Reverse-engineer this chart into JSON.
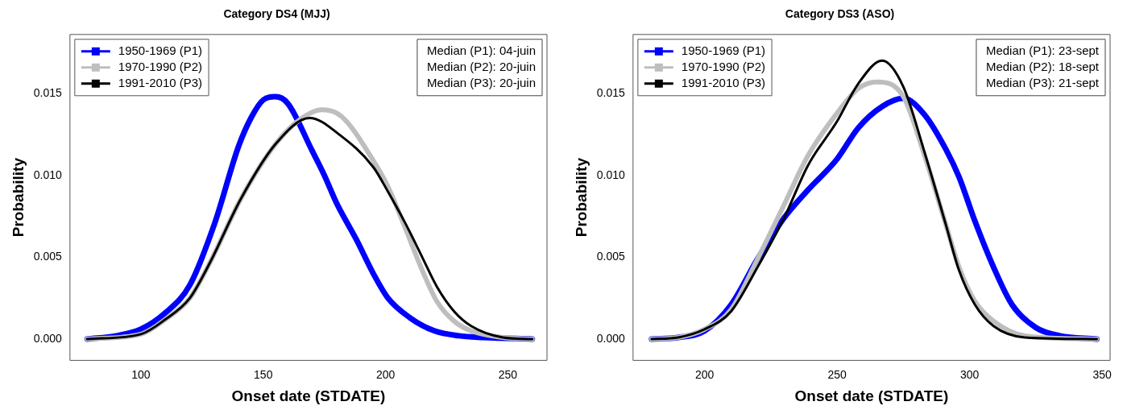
{
  "chart_data": [
    {
      "type": "line",
      "title": "Category DS4 (MJJ)",
      "xlabel": "Onset date (STDATE)",
      "ylabel": "Probability",
      "xlim": [
        71,
        266
      ],
      "ylim": [
        -0.0013,
        0.0186
      ],
      "xticks": [
        100,
        150,
        200,
        250
      ],
      "yticks": [
        {
          "value": 0,
          "label": "0.000"
        },
        {
          "value": 0.005,
          "label": "0.005"
        },
        {
          "value": 0.01,
          "label": "0.010"
        },
        {
          "value": 0.015,
          "label": "0.015"
        }
      ],
      "grid": false,
      "legend": "top left",
      "line_style": "solid",
      "annotations": [
        "Median (P1): 04-juin",
        "Median (P2): 20-juin",
        "Median (P3): 20-juin"
      ],
      "series": [
        {
          "name": "1950-1969 (P1)",
          "color": "#0000ff",
          "x": [
            78,
            90,
            100,
            110,
            120,
            130,
            140,
            145,
            150,
            155,
            160,
            170,
            175,
            180,
            188,
            195,
            201,
            210,
            220,
            230,
            240,
            260
          ],
          "values": [
            0,
            0.0002,
            0.0006,
            0.0016,
            0.0033,
            0.007,
            0.0118,
            0.0135,
            0.0146,
            0.0148,
            0.0144,
            0.0115,
            0.01,
            0.0083,
            0.0061,
            0.004,
            0.0025,
            0.0013,
            0.0005,
            0.0002,
            0.0001,
            0
          ]
        },
        {
          "name": "1970-1990 (P2)",
          "color": "#bebebe",
          "x": [
            78,
            100,
            110,
            120,
            128,
            141,
            155,
            165,
            174,
            182,
            195,
            201,
            208,
            215,
            221,
            228,
            235,
            248,
            260
          ],
          "values": [
            0,
            0.0003,
            0.0012,
            0.0025,
            0.0046,
            0.0086,
            0.0119,
            0.0134,
            0.014,
            0.0136,
            0.0109,
            0.0093,
            0.0068,
            0.0042,
            0.0023,
            0.0011,
            0.0005,
            0.0001,
            0
          ]
        },
        {
          "name": "1991-2010 (P3)",
          "color": "#000000",
          "x": [
            78,
            100,
            110,
            120,
            128,
            141,
            155,
            169,
            181,
            195,
            201,
            208,
            215,
            221,
            228,
            235,
            248,
            260
          ],
          "values": [
            0,
            0.0003,
            0.0012,
            0.0025,
            0.0046,
            0.0086,
            0.0119,
            0.0135,
            0.0125,
            0.0105,
            0.009,
            0.0071,
            0.005,
            0.0032,
            0.0017,
            0.0008,
            0.0001,
            0
          ]
        }
      ]
    },
    {
      "type": "line",
      "title": "Category DS3 (ASO)",
      "xlabel": "Onset date (STDATE)",
      "ylabel": "Probability",
      "xlim": [
        173,
        353
      ],
      "ylim": [
        -0.0013,
        0.0186
      ],
      "xticks": [
        200,
        250,
        300,
        350
      ],
      "yticks": [
        {
          "value": 0,
          "label": "0.000"
        },
        {
          "value": 0.005,
          "label": "0.005"
        },
        {
          "value": 0.01,
          "label": "0.010"
        },
        {
          "value": 0.015,
          "label": "0.015"
        }
      ],
      "grid": false,
      "legend": "top left",
      "line_style": "solid",
      "annotations": [
        "Median (P1): 23-sept",
        "Median (P2): 18-sept",
        "Median (P3): 21-sept"
      ],
      "series": [
        {
          "name": "1950-1969 (P1)",
          "color": "#0000ff",
          "x": [
            180,
            190,
            200,
            210,
            220,
            230,
            239,
            250,
            258,
            267,
            275,
            283,
            291,
            296,
            302,
            309,
            316,
            325,
            334,
            348
          ],
          "values": [
            0,
            0.0001,
            0.0005,
            0.0021,
            0.0049,
            0.0074,
            0.0091,
            0.011,
            0.0129,
            0.0142,
            0.0147,
            0.0137,
            0.0116,
            0.0099,
            0.0072,
            0.0044,
            0.0021,
            0.0007,
            0.0002,
            0
          ]
        },
        {
          "name": "1970-1990 (P2)",
          "color": "#bebebe",
          "x": [
            180,
            190,
            200,
            210,
            220,
            230,
            239,
            250,
            258,
            265,
            275,
            283,
            291,
            296,
            302,
            309,
            321,
            348
          ],
          "values": [
            0,
            0.0001,
            0.0006,
            0.0018,
            0.0049,
            0.0082,
            0.0112,
            0.0138,
            0.0153,
            0.0157,
            0.0148,
            0.0112,
            0.007,
            0.0044,
            0.0023,
            0.0011,
            0.0002,
            0
          ]
        },
        {
          "name": "1991-2010 (P3)",
          "color": "#000000",
          "x": [
            180,
            190,
            200,
            210,
            220,
            230,
            239,
            250,
            258,
            267,
            275,
            283,
            291,
            296,
            302,
            309,
            321,
            348
          ],
          "values": [
            0,
            0.0001,
            0.0006,
            0.0017,
            0.0044,
            0.0074,
            0.0106,
            0.0133,
            0.0156,
            0.017,
            0.0154,
            0.0114,
            0.007,
            0.0042,
            0.0021,
            0.0008,
            0.0001,
            0
          ]
        }
      ]
    }
  ]
}
